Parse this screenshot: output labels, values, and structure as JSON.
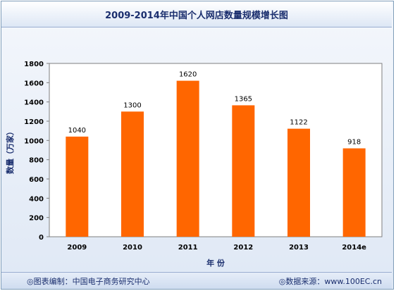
{
  "chart_data": {
    "type": "bar",
    "title": "2009-2014年中国个人网店数量规模增长图",
    "categories": [
      "2009",
      "2010",
      "2011",
      "2012",
      "2013",
      "2014e"
    ],
    "values": [
      1040,
      1300,
      1620,
      1365,
      1122,
      918
    ],
    "data_labels": [
      "1040",
      "1300",
      "1620",
      "1365",
      "1122",
      "918"
    ],
    "xlabel": "年 份",
    "ylabel": "数量（万家）",
    "ylim": [
      0,
      1800
    ],
    "yticks": [
      0,
      200,
      400,
      600,
      800,
      1000,
      1200,
      1400,
      1600,
      1800
    ],
    "ytick_labels": [
      "0",
      "200",
      "400",
      "600",
      "800",
      "1000",
      "1200",
      "1400",
      "1600",
      "1800"
    ],
    "bar_color": "#ff6600",
    "grid": false,
    "legend": "none"
  },
  "footer": {
    "source_left": "◎图表编制：中国电子商务研究中心",
    "source_right": "◎数据来源：www.100EC.cn"
  }
}
